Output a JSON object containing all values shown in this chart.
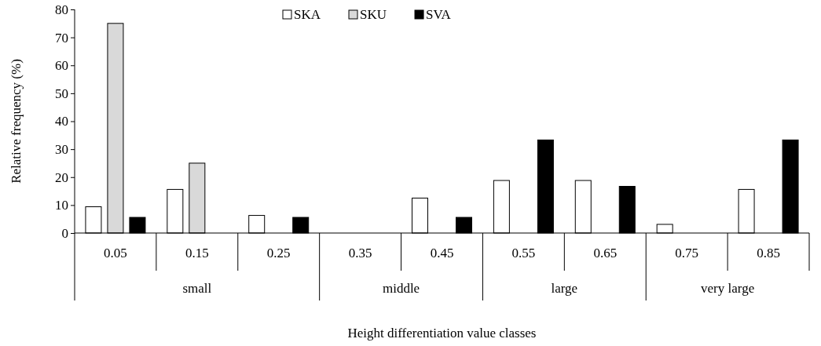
{
  "chart_data": {
    "type": "bar",
    "xlabel": "Height differentiation value classes",
    "ylabel": "Relative frequency (%)",
    "categories": [
      "0.05",
      "0.15",
      "0.25",
      "0.35",
      "0.45",
      "0.55",
      "0.65",
      "0.75",
      "0.85"
    ],
    "series": [
      {
        "name": "SKA",
        "color": "#ffffff",
        "values": [
          9.4,
          15.6,
          6.3,
          0,
          12.5,
          18.8,
          18.8,
          3.1,
          15.6
        ]
      },
      {
        "name": "SKU",
        "color": "#d9d9d9",
        "values": [
          75,
          25,
          0,
          0,
          0,
          0,
          0,
          0,
          0
        ]
      },
      {
        "name": "SVA",
        "color": "#000000",
        "values": [
          5.6,
          0,
          5.6,
          0,
          5.6,
          33.3,
          16.7,
          0,
          33.3
        ]
      }
    ],
    "ylim": [
      0,
      80
    ],
    "yticks": [
      0,
      10,
      20,
      30,
      40,
      50,
      60,
      70,
      80
    ],
    "grid": false,
    "legend": "top",
    "annotations": [
      "small",
      "middle",
      "large",
      "very large"
    ]
  }
}
